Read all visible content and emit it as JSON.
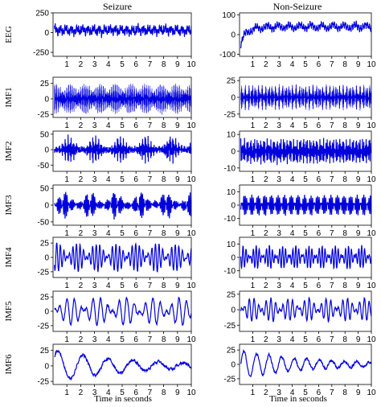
{
  "figure": {
    "columns": [
      "Seizure",
      "Non-Seizure"
    ],
    "rows": [
      "EEG",
      "IMF1",
      "IMF2",
      "IMF3",
      "IMF4",
      "IMF5",
      "IMF6"
    ],
    "xlabel": "Time in seconds",
    "line_color": "#0000dd"
  },
  "chart_data": [
    {
      "type": "line",
      "panel": "Seizure / EEG",
      "xlabel": "",
      "ylabel": "EEG",
      "x_range": [
        0,
        10
      ],
      "ylim": [
        -300,
        250
      ],
      "xticks": [
        1,
        2,
        3,
        4,
        5,
        6,
        7,
        8,
        9,
        10
      ],
      "yticks": [
        250,
        0,
        -250
      ],
      "series": [
        {
          "values_desc": "broadband noisy signal",
          "amp": 120,
          "base": 30,
          "freqs": [
            2.5,
            7,
            13,
            19
          ],
          "seed": 11
        }
      ]
    },
    {
      "type": "line",
      "panel": "Seizure / IMF1",
      "ylabel": "IMF1",
      "x_range": [
        0,
        10
      ],
      "ylim": [
        -30,
        35
      ],
      "xticks": [
        1,
        2,
        3,
        4,
        5,
        6,
        7,
        8,
        9,
        10
      ],
      "yticks": [
        25,
        0,
        -25
      ],
      "series": [
        {
          "amp": 28,
          "base": 0,
          "freqs": [
            45,
            53
          ],
          "seed": 21,
          "dense": true
        }
      ]
    },
    {
      "type": "line",
      "panel": "Seizure / IMF2",
      "ylabel": "IMF2",
      "x_range": [
        0,
        10
      ],
      "ylim": [
        -70,
        60
      ],
      "xticks": [
        1,
        2,
        3,
        4,
        5,
        6,
        7,
        8,
        9,
        10
      ],
      "yticks": [
        50,
        0,
        -50
      ],
      "series": [
        {
          "amp": 55,
          "base": 0,
          "freqs": [
            18,
            23
          ],
          "seed": 31,
          "bursty": true
        }
      ]
    },
    {
      "type": "line",
      "panel": "Seizure / IMF3",
      "ylabel": "IMF3",
      "x_range": [
        0,
        10
      ],
      "ylim": [
        -60,
        60
      ],
      "xticks": [
        1,
        2,
        3,
        4,
        5,
        6,
        7,
        8,
        9,
        10
      ],
      "yticks": [
        50,
        0,
        -50
      ],
      "series": [
        {
          "amp": 50,
          "base": 0,
          "freqs": [
            9,
            11
          ],
          "seed": 41,
          "bursty": true
        }
      ]
    },
    {
      "type": "line",
      "panel": "Seizure / IMF4",
      "ylabel": "IMF4",
      "x_range": [
        0,
        10
      ],
      "ylim": [
        -35,
        35
      ],
      "xticks": [
        1,
        2,
        3,
        4,
        5,
        6,
        7,
        8,
        9,
        10
      ],
      "yticks": [
        25,
        0,
        -25
      ],
      "series": [
        {
          "amp": 28,
          "base": 0,
          "freqs": [
            3.5,
            4.2
          ],
          "seed": 51
        }
      ]
    },
    {
      "type": "line",
      "panel": "Seizure / IMF5",
      "ylabel": "IMF5",
      "x_range": [
        0,
        10
      ],
      "ylim": [
        -35,
        35
      ],
      "xticks": [
        1,
        2,
        3,
        4,
        5,
        6,
        7,
        8,
        9,
        10
      ],
      "yticks": [
        25,
        0,
        -25
      ],
      "series": [
        {
          "amp": 28,
          "base": 0,
          "freqs": [
            1.6,
            2.1
          ],
          "seed": 61
        }
      ]
    },
    {
      "type": "line",
      "panel": "Seizure / IMF6",
      "ylabel": "IMF6",
      "x_range": [
        0,
        10
      ],
      "ylim": [
        -30,
        35
      ],
      "xticks": [
        1,
        2,
        3,
        4,
        5,
        6,
        7,
        8,
        9,
        10
      ],
      "yticks": [
        25,
        0,
        -25
      ],
      "series": [
        {
          "amp": 30,
          "base": 0,
          "freqs": [
            0.55
          ],
          "seed": 71,
          "decay": true
        }
      ]
    },
    {
      "type": "line",
      "panel": "Non-Seizure / EEG",
      "ylabel": "",
      "x_range": [
        0,
        10
      ],
      "ylim": [
        -110,
        110
      ],
      "xticks": [
        1,
        2,
        3,
        4,
        5,
        6,
        7,
        8,
        9,
        10
      ],
      "yticks": [
        100,
        0,
        -100
      ],
      "series": [
        {
          "amp": 35,
          "base": 40,
          "freqs": [
            1.2,
            6,
            14
          ],
          "seed": 12,
          "ramp": true
        }
      ]
    },
    {
      "type": "line",
      "panel": "Non-Seizure / IMF1",
      "ylabel": "",
      "x_range": [
        0,
        10
      ],
      "ylim": [
        -30,
        30
      ],
      "xticks": [
        1,
        2,
        3,
        4,
        5,
        6,
        7,
        8,
        9,
        10
      ],
      "yticks": [
        25,
        0,
        -25
      ],
      "series": [
        {
          "amp": 22,
          "base": 0,
          "freqs": [
            40,
            47
          ],
          "seed": 22,
          "dense": true
        }
      ]
    },
    {
      "type": "line",
      "panel": "Non-Seizure / IMF2",
      "ylabel": "",
      "x_range": [
        0,
        10
      ],
      "ylim": [
        -12,
        12
      ],
      "xticks": [
        1,
        2,
        3,
        4,
        5,
        6,
        7,
        8,
        9,
        10
      ],
      "yticks": [
        10,
        0,
        -10
      ],
      "series": [
        {
          "amp": 9,
          "base": 0,
          "freqs": [
            18,
            22
          ],
          "seed": 32
        }
      ]
    },
    {
      "type": "line",
      "panel": "Non-Seizure / IMF3",
      "ylabel": "",
      "x_range": [
        0,
        10
      ],
      "ylim": [
        -15,
        15
      ],
      "xticks": [
        1,
        2,
        3,
        4,
        5,
        6,
        7,
        8,
        9,
        10
      ],
      "yticks": [
        10,
        0,
        -10
      ],
      "series": [
        {
          "amp": 9,
          "base": 0,
          "freqs": [
            8,
            10
          ],
          "seed": 42
        }
      ]
    },
    {
      "type": "line",
      "panel": "Non-Seizure / IMF4",
      "ylabel": "",
      "x_range": [
        0,
        10
      ],
      "ylim": [
        -15,
        15
      ],
      "xticks": [
        1,
        2,
        3,
        4,
        5,
        6,
        7,
        8,
        9,
        10
      ],
      "yticks": [
        10,
        0,
        -10
      ],
      "series": [
        {
          "amp": 10,
          "base": 0,
          "freqs": [
            4,
            5
          ],
          "seed": 52
        }
      ]
    },
    {
      "type": "line",
      "panel": "Non-Seizure / IMF5",
      "ylabel": "",
      "x_range": [
        0,
        10
      ],
      "ylim": [
        -35,
        30
      ],
      "xticks": [
        1,
        2,
        3,
        4,
        5,
        6,
        7,
        8,
        9,
        10
      ],
      "yticks": [
        25,
        0,
        -25
      ],
      "series": [
        {
          "amp": 22,
          "base": 0,
          "freqs": [
            2.4,
            3.1
          ],
          "seed": 62
        }
      ]
    },
    {
      "type": "line",
      "panel": "Non-Seizure / IMF6",
      "ylabel": "",
      "x_range": [
        0,
        10
      ],
      "ylim": [
        -35,
        35
      ],
      "xticks": [
        1,
        2,
        3,
        4,
        5,
        6,
        7,
        8,
        9,
        10
      ],
      "yticks": [
        25,
        0,
        -25
      ],
      "series": [
        {
          "amp": 28,
          "base": 0,
          "freqs": [
            1.05
          ],
          "seed": 72,
          "decay": true
        }
      ]
    }
  ]
}
